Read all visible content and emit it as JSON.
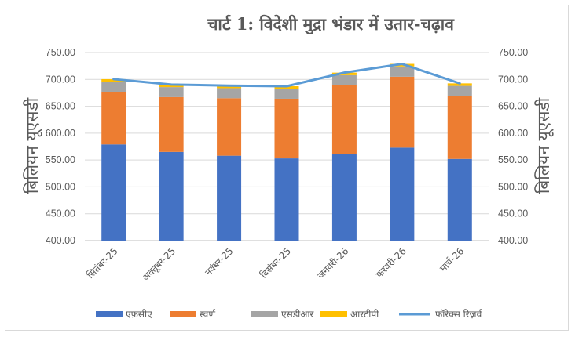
{
  "chart_data": {
    "type": "bar",
    "subtype": "stacked-bar-with-line",
    "title": "चार्ट 1: विदेशी मुद्रा भंडार में उतार-चढ़ाव",
    "categories": [
      "सितंबर-25",
      "अक्तूबर-25",
      "नवंबर-25",
      "दिसंबर-25",
      "जनवरी-26",
      "फरवरी-26",
      "मार्च-26"
    ],
    "ylabel": "बिलियन यूएसडी",
    "ylabel_right": "बिलियन यूएसडी",
    "ylim": [
      400,
      750
    ],
    "yticks": [
      "400.00",
      "450.00",
      "500.00",
      "550.00",
      "600.00",
      "650.00",
      "700.00",
      "750.00"
    ],
    "grid": true,
    "legend_position": "bottom",
    "series": [
      {
        "name": "एफ़सीए",
        "kind": "bar",
        "color": "#4472C4",
        "values": [
          579,
          565,
          558,
          553,
          561,
          573,
          552
        ]
      },
      {
        "name": "स्वर्ण",
        "kind": "bar",
        "color": "#ED7D31",
        "values": [
          98,
          102,
          107,
          111,
          128,
          132,
          117
        ]
      },
      {
        "name": "एसडीआर",
        "kind": "bar",
        "color": "#A5A5A5",
        "values": [
          18.8,
          18.7,
          18.7,
          18.6,
          18.9,
          19.1,
          18.9
        ]
      },
      {
        "name": "आरटीपी",
        "kind": "bar",
        "color": "#FFC000",
        "values": [
          4.7,
          4.7,
          4.7,
          4.7,
          4.7,
          4.7,
          4.7
        ]
      },
      {
        "name": "फॉरेक्स रिज़र्व",
        "kind": "line",
        "color": "#5B9BD5",
        "values": [
          700.5,
          690.4,
          688.4,
          687.3,
          712.6,
          728.8,
          692.6
        ]
      }
    ]
  }
}
